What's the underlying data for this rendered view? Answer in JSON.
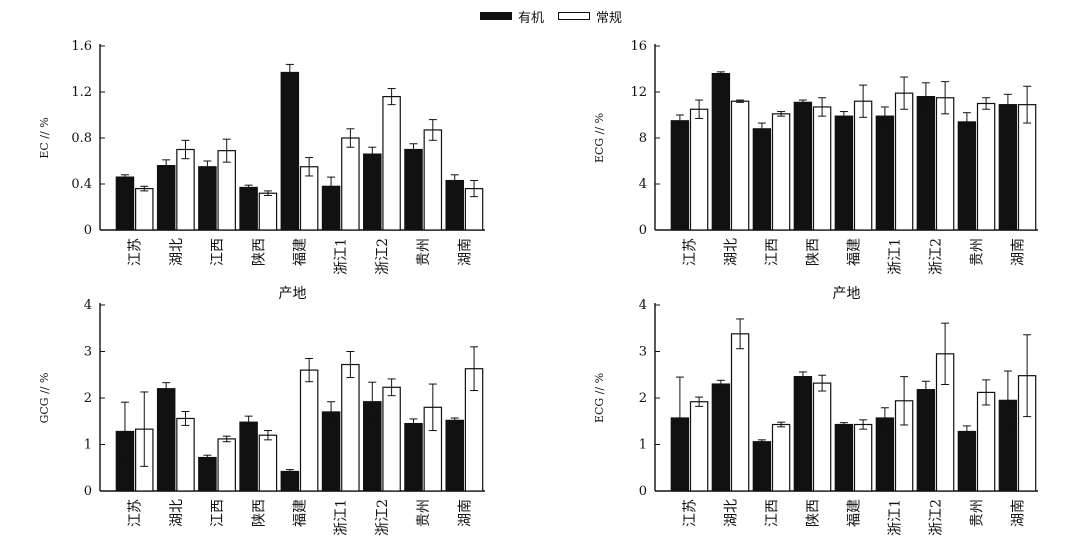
{
  "legend": {
    "organic": "有机",
    "conventional": "常规"
  },
  "chart_data": [
    {
      "type": "bar",
      "ylabel": "EC // %",
      "xlabel": "产地",
      "ylim": [
        0,
        1.6
      ],
      "yticks": [
        "0",
        "0.4",
        "0.8",
        "1.2",
        "1.6"
      ],
      "categories": [
        "江苏",
        "湖北",
        "江西",
        "陕西",
        "福建",
        "浙江1",
        "浙江2",
        "贵州",
        "湖南"
      ],
      "series": [
        {
          "name": "有机",
          "color": "#111111",
          "values": [
            0.46,
            0.56,
            0.55,
            0.37,
            1.37,
            0.38,
            0.66,
            0.7,
            0.43
          ],
          "errors": [
            0.02,
            0.05,
            0.05,
            0.02,
            0.07,
            0.08,
            0.06,
            0.05,
            0.05
          ]
        },
        {
          "name": "常规",
          "color": "#ffffff",
          "values": [
            0.36,
            0.7,
            0.69,
            0.32,
            0.55,
            0.8,
            1.16,
            0.87,
            0.36
          ],
          "errors": [
            0.02,
            0.08,
            0.1,
            0.02,
            0.08,
            0.08,
            0.07,
            0.09,
            0.07
          ]
        }
      ]
    },
    {
      "type": "bar",
      "ylabel": "ECG // %",
      "xlabel": "产地",
      "ylim": [
        0,
        16
      ],
      "yticks": [
        "0",
        "4",
        "8",
        "12",
        "16"
      ],
      "categories": [
        "江苏",
        "湖北",
        "江西",
        "陕西",
        "福建",
        "浙江1",
        "浙江2",
        "贵州",
        "湖南"
      ],
      "series": [
        {
          "name": "有机",
          "color": "#111111",
          "values": [
            9.5,
            13.6,
            8.8,
            11.1,
            9.9,
            9.9,
            11.6,
            9.4,
            10.9
          ],
          "errors": [
            0.5,
            0.15,
            0.5,
            0.2,
            0.4,
            0.8,
            1.2,
            0.8,
            0.9
          ]
        },
        {
          "name": "常规",
          "color": "#ffffff",
          "values": [
            10.5,
            11.2,
            10.1,
            10.7,
            11.2,
            11.9,
            11.5,
            11.0,
            10.9
          ],
          "errors": [
            0.8,
            0.1,
            0.2,
            0.8,
            1.4,
            1.4,
            1.4,
            0.5,
            1.6
          ]
        }
      ]
    },
    {
      "type": "bar",
      "ylabel": "GCG // %",
      "xlabel": "",
      "ylim": [
        0,
        4
      ],
      "yticks": [
        "0",
        "1",
        "2",
        "3",
        "4"
      ],
      "categories": [
        "江苏",
        "湖北",
        "江西",
        "陕西",
        "福建",
        "浙江1",
        "浙江2",
        "贵州",
        "湖南"
      ],
      "series": [
        {
          "name": "有机",
          "color": "#111111",
          "values": [
            1.28,
            2.2,
            0.72,
            1.48,
            0.42,
            1.7,
            1.92,
            1.45,
            1.52
          ],
          "errors": [
            0.63,
            0.13,
            0.05,
            0.13,
            0.04,
            0.22,
            0.42,
            0.1,
            0.05
          ]
        },
        {
          "name": "常规",
          "color": "#ffffff",
          "values": [
            1.33,
            1.56,
            1.12,
            1.2,
            2.6,
            2.72,
            2.23,
            1.8,
            2.63
          ],
          "errors": [
            0.8,
            0.15,
            0.06,
            0.1,
            0.25,
            0.28,
            0.18,
            0.5,
            0.47
          ]
        }
      ]
    },
    {
      "type": "bar",
      "ylabel": "ECG // %",
      "xlabel": "",
      "ylim": [
        0,
        4
      ],
      "yticks": [
        "0",
        "1",
        "2",
        "3",
        "4"
      ],
      "categories": [
        "江苏",
        "湖北",
        "江西",
        "陕西",
        "福建",
        "浙江1",
        "浙江2",
        "贵州",
        "湖南"
      ],
      "series": [
        {
          "name": "有机",
          "color": "#111111",
          "values": [
            1.57,
            2.3,
            1.06,
            2.46,
            1.43,
            1.57,
            2.18,
            1.28,
            1.95
          ],
          "errors": [
            0.88,
            0.08,
            0.04,
            0.1,
            0.04,
            0.22,
            0.18,
            0.12,
            0.63
          ]
        },
        {
          "name": "常规",
          "color": "#ffffff",
          "values": [
            1.92,
            3.38,
            1.43,
            2.32,
            1.43,
            1.94,
            2.95,
            2.12,
            2.48
          ],
          "errors": [
            0.1,
            0.32,
            0.05,
            0.17,
            0.1,
            0.52,
            0.66,
            0.27,
            0.88
          ]
        }
      ]
    }
  ]
}
